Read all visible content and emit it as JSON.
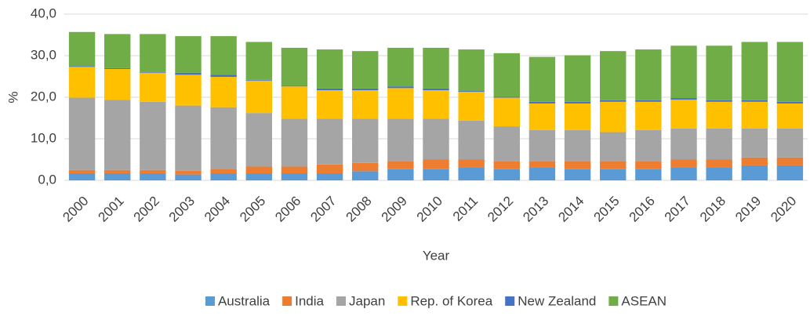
{
  "chart_data": {
    "type": "stacked-bar",
    "x_label": "Year",
    "y_label": "%",
    "categories": [
      "2000",
      "2001",
      "2002",
      "2003",
      "2004",
      "2005",
      "2006",
      "2007",
      "2008",
      "2009",
      "2010",
      "2011",
      "2012",
      "2013",
      "2014",
      "2015",
      "2016",
      "2017",
      "2018",
      "2019",
      "2020"
    ],
    "series": [
      {
        "name": "Australia",
        "color": "#5b9bd5",
        "values": [
          1.7,
          1.7,
          1.7,
          1.4,
          1.7,
          1.7,
          1.7,
          1.7,
          2.2,
          2.7,
          2.7,
          3.1,
          2.7,
          3.1,
          2.7,
          2.7,
          2.7,
          3.1,
          3.1,
          3.6,
          3.6
        ]
      },
      {
        "name": "India",
        "color": "#ed7d31",
        "values": [
          0.8,
          0.8,
          0.8,
          0.9,
          1.1,
          1.6,
          1.6,
          2.1,
          2.0,
          1.9,
          2.3,
          1.9,
          1.9,
          1.5,
          1.9,
          1.9,
          1.9,
          1.9,
          1.9,
          1.9,
          1.9
        ]
      },
      {
        "name": "Japan",
        "color": "#a5a5a5",
        "values": [
          17.4,
          16.9,
          16.4,
          15.7,
          14.8,
          12.9,
          11.5,
          11.0,
          10.6,
          10.2,
          9.8,
          9.4,
          8.4,
          7.5,
          7.5,
          7.0,
          7.5,
          7.5,
          7.5,
          7.0,
          7.0
        ]
      },
      {
        "name": "Rep. of Korea",
        "color": "#ffc000",
        "values": [
          7.4,
          7.4,
          7.0,
          7.4,
          7.3,
          7.8,
          7.8,
          6.9,
          6.9,
          7.4,
          6.9,
          6.9,
          6.9,
          6.4,
          6.4,
          7.3,
          6.8,
          6.9,
          6.4,
          6.4,
          6.0
        ]
      },
      {
        "name": "New Zealand",
        "color": "#4472c4",
        "values": [
          0.2,
          0.2,
          0.2,
          0.5,
          0.5,
          0.2,
          0.2,
          0.4,
          0.4,
          0.4,
          0.4,
          0.2,
          0.2,
          0.4,
          0.4,
          0.4,
          0.4,
          0.4,
          0.4,
          0.4,
          0.4
        ]
      },
      {
        "name": "ASEAN",
        "color": "#70ad47",
        "values": [
          8.2,
          8.2,
          9.1,
          8.8,
          9.3,
          9.1,
          9.1,
          9.4,
          9.0,
          9.3,
          9.8,
          10.0,
          10.5,
          10.8,
          11.2,
          11.8,
          12.2,
          12.6,
          13.1,
          14.0,
          14.4
        ]
      }
    ],
    "ylim": [
      0,
      40
    ],
    "yticks": [
      {
        "value": 0,
        "label": "0,0"
      },
      {
        "value": 10,
        "label": "10,0"
      },
      {
        "value": 20,
        "label": "20,0"
      },
      {
        "value": 30,
        "label": "30,0"
      },
      {
        "value": 40,
        "label": "40,0"
      }
    ],
    "grid": true,
    "legend": "bottom"
  }
}
